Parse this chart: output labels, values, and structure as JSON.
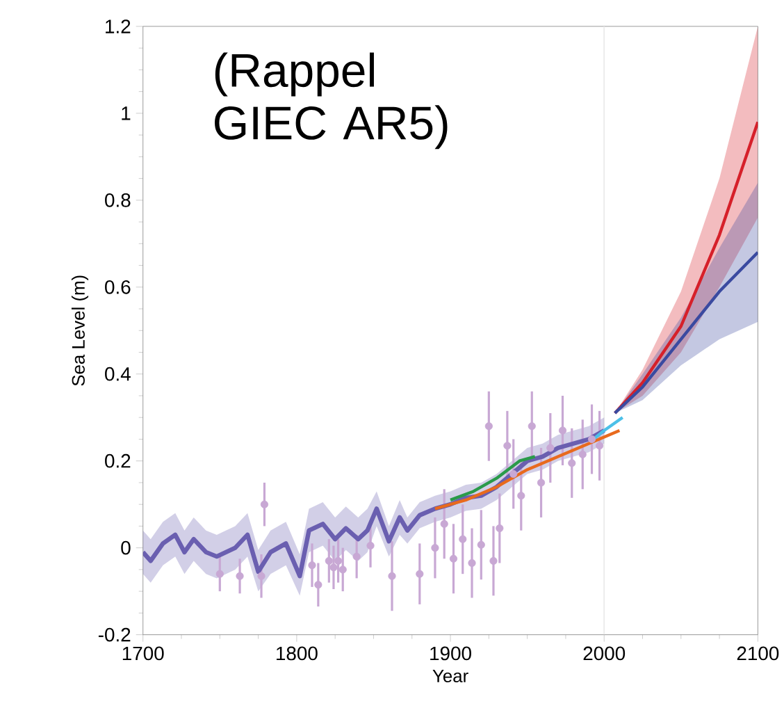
{
  "chart_data": {
    "type": "line",
    "xlabel": "Year",
    "ylabel": "Sea Level (m)",
    "annotations": [
      "(Rappel GIEC AR5)"
    ],
    "xlim": [
      1700,
      2100
    ],
    "xticks": [
      1700,
      1800,
      1900,
      2000,
      2100
    ],
    "ylim": [
      -0.2,
      1.2
    ],
    "yticks": [
      {
        "value": -0.2,
        "label": "-0.2"
      },
      {
        "value": 0,
        "label": "0"
      },
      {
        "value": 0.2,
        "label": "0.2"
      },
      {
        "value": 0.4,
        "label": "0.4"
      },
      {
        "value": 0.6,
        "label": "0.6"
      },
      {
        "value": 0.8,
        "label": "0.8"
      },
      {
        "value": 1,
        "label": "1"
      },
      {
        "value": 1.2,
        "label": "1.2"
      }
    ],
    "ref_lines": [
      {
        "axis": "x",
        "value": 2000,
        "color": "#ececec"
      }
    ],
    "series": [
      {
        "color": "#6a5fb0",
        "x": [
          1700,
          1705,
          1713,
          1721,
          1727,
          1733,
          1741,
          1748,
          1760,
          1768,
          1775,
          1783,
          1793,
          1802,
          1808,
          1817,
          1825,
          1832,
          1840,
          1846,
          1852,
          1860,
          1867,
          1872,
          1880,
          1890,
          1900,
          1910,
          1920,
          1930,
          1940,
          1950,
          1960,
          1970,
          1980,
          1990,
          2000
        ],
        "values": [
          -0.01,
          -0.03,
          0.01,
          0.03,
          -0.01,
          0.02,
          -0.01,
          -0.02,
          0.0,
          0.03,
          -0.055,
          -0.01,
          0.01,
          -0.065,
          0.04,
          0.055,
          0.02,
          0.045,
          0.02,
          0.04,
          0.09,
          0.015,
          0.07,
          0.04,
          0.075,
          0.09,
          0.1,
          0.115,
          0.12,
          0.14,
          0.17,
          0.2,
          0.21,
          0.23,
          0.24,
          0.25,
          0.27
        ],
        "lower": [
          -0.06,
          -0.08,
          -0.04,
          -0.02,
          -0.06,
          -0.03,
          -0.06,
          -0.07,
          -0.05,
          -0.02,
          -0.1,
          -0.06,
          -0.04,
          -0.11,
          -0.01,
          0.005,
          -0.03,
          -0.005,
          -0.03,
          -0.01,
          0.05,
          -0.02,
          0.03,
          0.01,
          0.045,
          0.06,
          0.07,
          0.085,
          0.09,
          0.11,
          0.14,
          0.17,
          0.18,
          0.2,
          0.21,
          0.22,
          0.24
        ],
        "upper": [
          0.04,
          0.02,
          0.06,
          0.08,
          0.04,
          0.07,
          0.04,
          0.03,
          0.05,
          0.08,
          -0.005,
          0.04,
          0.06,
          -0.015,
          0.09,
          0.105,
          0.07,
          0.095,
          0.07,
          0.09,
          0.13,
          0.05,
          0.11,
          0.07,
          0.105,
          0.12,
          0.13,
          0.145,
          0.15,
          0.17,
          0.2,
          0.23,
          0.24,
          0.26,
          0.27,
          0.28,
          0.3
        ]
      },
      {
        "type": "scatter",
        "color": "#c8a8d4",
        "marker": "circle",
        "x": [
          1750,
          1763,
          1777,
          1779,
          1810,
          1814,
          1821,
          1824,
          1827,
          1830,
          1839,
          1848,
          1862,
          1880,
          1890,
          1896,
          1902,
          1908,
          1914,
          1920,
          1925,
          1928,
          1932,
          1937,
          1941,
          1946,
          1953,
          1959,
          1965,
          1973,
          1979,
          1986,
          1992,
          1997
        ],
        "values": [
          -0.06,
          -0.065,
          -0.065,
          0.1,
          -0.04,
          -0.085,
          -0.03,
          -0.045,
          -0.03,
          -0.05,
          -0.02,
          0.005,
          -0.065,
          -0.06,
          0.0,
          0.055,
          -0.025,
          0.02,
          -0.035,
          0.007,
          0.28,
          -0.03,
          0.045,
          0.235,
          0.17,
          0.12,
          0.28,
          0.15,
          0.23,
          0.27,
          0.195,
          0.215,
          0.25,
          0.235
        ],
        "errors": [
          0.04,
          0.04,
          0.05,
          0.05,
          0.05,
          0.05,
          0.05,
          0.05,
          0.05,
          0.05,
          0.05,
          0.05,
          0.08,
          0.07,
          0.07,
          0.08,
          0.08,
          0.08,
          0.08,
          0.08,
          0.08,
          0.08,
          0.08,
          0.08,
          0.08,
          0.08,
          0.08,
          0.08,
          0.08,
          0.08,
          0.08,
          0.08,
          0.08,
          0.08
        ]
      },
      {
        "color": "#2a9a4a",
        "x": [
          1900,
          1915,
          1930,
          1945,
          1955
        ],
        "values": [
          0.11,
          0.13,
          0.16,
          0.2,
          0.21
        ]
      },
      {
        "color": "#e86a1e",
        "x": [
          1890,
          1910,
          1930,
          1950,
          1970,
          1990,
          2010
        ],
        "values": [
          0.09,
          0.11,
          0.14,
          0.18,
          0.21,
          0.24,
          0.27
        ]
      },
      {
        "color": "#4cc0e8",
        "x": [
          1993,
          2000,
          2012
        ],
        "values": [
          0.25,
          0.27,
          0.3
        ]
      },
      {
        "color": "#d6202a",
        "x": [
          2007,
          2025,
          2050,
          2075,
          2100
        ],
        "values": [
          0.31,
          0.38,
          0.51,
          0.72,
          0.98
        ],
        "lower": [
          0.31,
          0.35,
          0.45,
          0.6,
          0.76
        ],
        "upper": [
          0.31,
          0.41,
          0.59,
          0.85,
          1.2
        ]
      },
      {
        "color": "#3a4aa0",
        "x": [
          2007,
          2025,
          2050,
          2075,
          2100
        ],
        "values": [
          0.31,
          0.37,
          0.48,
          0.59,
          0.68
        ],
        "lower": [
          0.31,
          0.34,
          0.42,
          0.48,
          0.52
        ],
        "upper": [
          0.31,
          0.4,
          0.53,
          0.69,
          0.84
        ]
      }
    ]
  }
}
